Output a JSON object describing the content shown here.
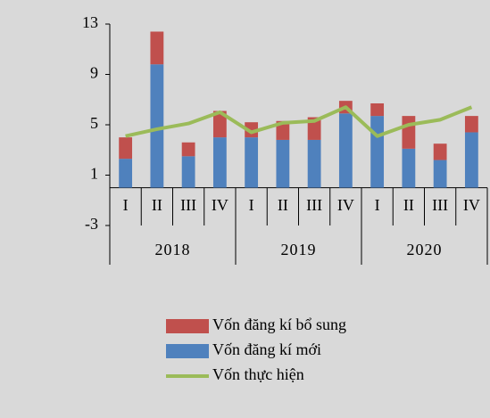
{
  "chart_data": {
    "type": "bar",
    "stacked": true,
    "categories": [
      "I",
      "II",
      "III",
      "IV",
      "I",
      "II",
      "III",
      "IV",
      "I",
      "II",
      "III",
      "IV"
    ],
    "groups": [
      "2018",
      "2019",
      "2020"
    ],
    "series": [
      {
        "name": "Vốn đăng kí mới",
        "color": "#4f81bd",
        "type": "bar",
        "values": [
          2.3,
          9.8,
          2.5,
          4.0,
          4.0,
          3.8,
          3.8,
          5.9,
          5.7,
          3.1,
          2.2,
          4.4
        ]
      },
      {
        "name": "Vốn đăng kí bổ sung",
        "color": "#c0504d",
        "type": "bar",
        "values": [
          1.7,
          2.6,
          1.1,
          2.1,
          1.2,
          1.5,
          1.8,
          1.0,
          1.0,
          2.6,
          1.3,
          1.3
        ]
      },
      {
        "name": "Vốn thực hiện",
        "color": "#9bbb59",
        "type": "line",
        "values": [
          4.1,
          4.65,
          5.1,
          6.0,
          4.4,
          5.15,
          5.3,
          6.4,
          4.1,
          5.0,
          5.4,
          6.4
        ]
      }
    ],
    "ylim": [
      -3,
      13
    ],
    "yticks": [
      -3,
      1,
      5,
      9,
      13
    ],
    "grid": false
  }
}
